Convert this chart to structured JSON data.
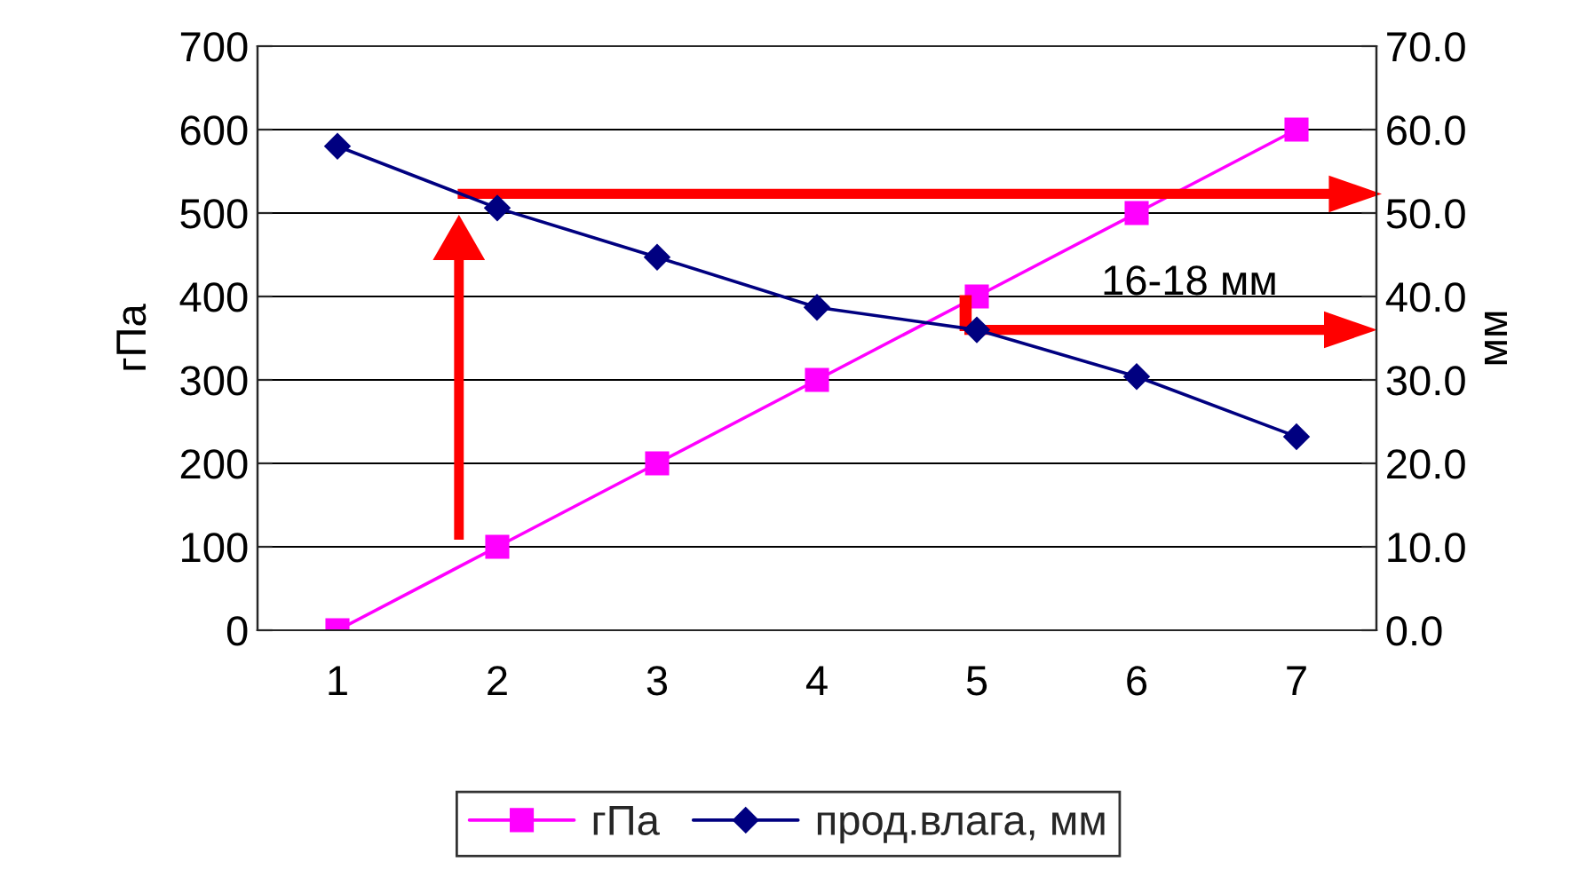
{
  "chart_data": {
    "type": "line",
    "categories": [
      "1",
      "2",
      "3",
      "4",
      "5",
      "6",
      "7"
    ],
    "series": [
      {
        "name": "гПа",
        "color": "#ff00ff",
        "marker": "square",
        "values": [
          0,
          100,
          200,
          300,
          400,
          500,
          600
        ]
      },
      {
        "name": "прод.влага, мм",
        "color": "#000080",
        "marker": "diamond",
        "axis": "y2",
        "values": [
          58,
          50.6,
          44.7,
          38.7,
          36.0,
          30.4,
          23.2
        ]
      }
    ],
    "ylabel": "гПа",
    "y2label": "мм",
    "ylim": [
      0,
      700
    ],
    "yticks": [
      0,
      100,
      200,
      300,
      400,
      500,
      600,
      700
    ],
    "y2lim": [
      0,
      70
    ],
    "y2ticks": [
      {
        "value": 0,
        "label": "0.0"
      },
      {
        "value": 10,
        "label": "10.0"
      },
      {
        "value": 20,
        "label": "20.0"
      },
      {
        "value": 30,
        "label": "30.0"
      },
      {
        "value": 40,
        "label": "40.0"
      },
      {
        "value": 50,
        "label": "50.0"
      },
      {
        "value": 60,
        "label": "60.0"
      },
      {
        "value": 70,
        "label": "70.0"
      }
    ],
    "annotations": [
      "16-18 мм"
    ],
    "grid": "y",
    "legend": "bottom",
    "line_style": "solid"
  }
}
